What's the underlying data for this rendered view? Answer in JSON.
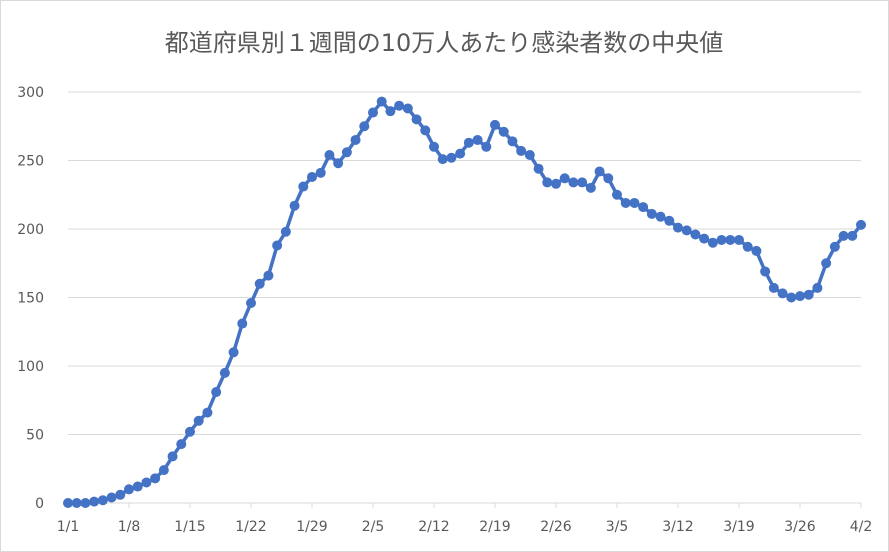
{
  "chart_data": {
    "type": "line",
    "title": "都道府県別１週間の10万人あたり感染者数の中央値",
    "xlabel": "",
    "ylabel": "",
    "ylim": [
      0,
      300
    ],
    "yticks": [
      0,
      50,
      100,
      150,
      200,
      250,
      300
    ],
    "xtick_labels": [
      "1/1",
      "1/8",
      "1/15",
      "1/22",
      "1/29",
      "2/5",
      "2/12",
      "2/19",
      "2/26",
      "3/5",
      "3/12",
      "3/19",
      "3/26",
      "4/2"
    ],
    "grid": true,
    "legend": "none",
    "line_color": "#4472c4",
    "series": [
      {
        "values": [
          0,
          0,
          0,
          1,
          2,
          4,
          6,
          10,
          12,
          15,
          18,
          24,
          34,
          43,
          52,
          60,
          66,
          81,
          95,
          110,
          131,
          146,
          160,
          166,
          188,
          198,
          217,
          231,
          238,
          241,
          254,
          248,
          256,
          265,
          275,
          285,
          293,
          286,
          290,
          288,
          280,
          272,
          260,
          251,
          252,
          255,
          263,
          265,
          260,
          276,
          271,
          264,
          257,
          254,
          244,
          234,
          233,
          237,
          234,
          234,
          230,
          242,
          237,
          225,
          219,
          219,
          216,
          211,
          209,
          206,
          201,
          199,
          196,
          193,
          190,
          192,
          192,
          192,
          187,
          184,
          169,
          157,
          153,
          150,
          151,
          152,
          157,
          175,
          187,
          195,
          195,
          203
        ]
      }
    ]
  }
}
